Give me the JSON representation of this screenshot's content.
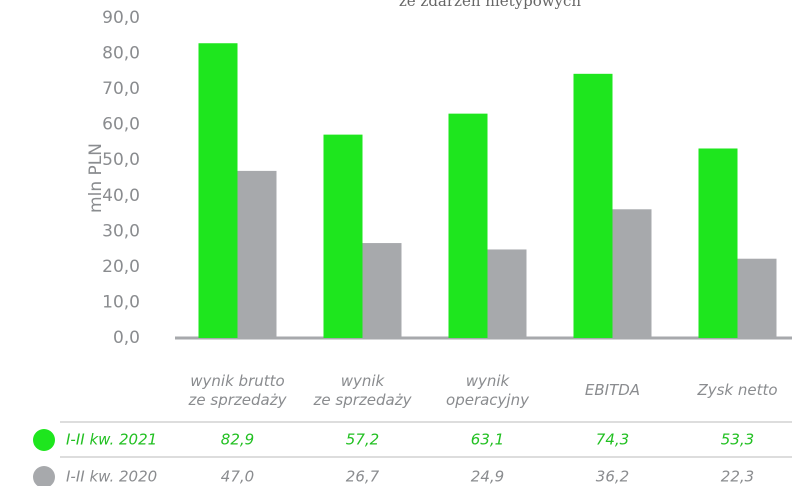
{
  "chart_data": {
    "type": "bar",
    "title": "ze zdarzeń nietypowych",
    "y_label": "mln PLN",
    "categories": [
      "wynik brutto\nze sprzedaży",
      "wynik\nze sprzedaży",
      "wynik\noperacyjny",
      "EBITDA",
      "Zysk netto"
    ],
    "series": [
      {
        "name": "I-II kw. 2021",
        "color": "#1ee61e",
        "values": [
          82.9,
          57.2,
          63.1,
          74.3,
          53.3
        ],
        "value_labels": [
          "82,9",
          "57,2",
          "63,1",
          "74,3",
          "53,3"
        ]
      },
      {
        "name": "I-II kw. 2020",
        "color": "#a7a9ac",
        "values": [
          47.0,
          26.7,
          24.9,
          36.2,
          22.3
        ],
        "value_labels": [
          "47,0",
          "26,7",
          "24,9",
          "36,2",
          "22,3"
        ]
      }
    ],
    "ylim": [
      0,
      90
    ],
    "yticks": [
      {
        "value": 0,
        "label": "0,0"
      },
      {
        "value": 10,
        "label": "10,0"
      },
      {
        "value": 20,
        "label": "20,0"
      },
      {
        "value": 30,
        "label": "30,0"
      },
      {
        "value": 40,
        "label": "40,0"
      },
      {
        "value": 50,
        "label": "50,0"
      },
      {
        "value": 60,
        "label": "60,0"
      },
      {
        "value": 70,
        "label": "70,0"
      },
      {
        "value": 80,
        "label": "80,0"
      },
      {
        "value": 90,
        "label": "90,0"
      }
    ]
  }
}
